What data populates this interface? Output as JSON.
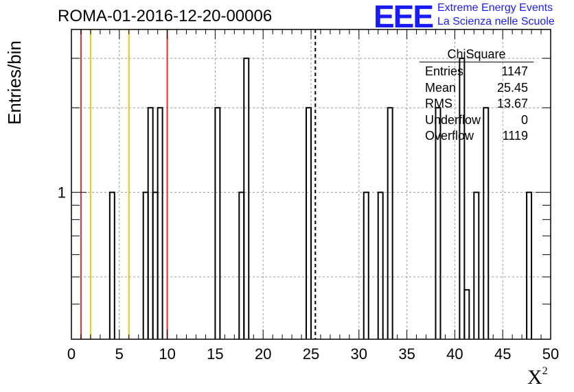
{
  "chart_data": {
    "type": "bar",
    "title": "ROMA-01-2016-12-20-00006",
    "xlabel": "X",
    "xlabel_superscript": "2",
    "ylabel": "Entries/bin",
    "xlim": [
      0,
      50
    ],
    "ylim_log": [
      0.3,
      3.8
    ],
    "y_scale": "log",
    "grid": true,
    "bin_width": 0.5,
    "x_ticks": [
      "0",
      "5",
      "10",
      "15",
      "20",
      "25",
      "30",
      "35",
      "40",
      "45",
      "50"
    ],
    "y_tick_labels": [
      "1"
    ],
    "bins": [
      {
        "x": 4.0,
        "count": 1
      },
      {
        "x": 7.5,
        "count": 1
      },
      {
        "x": 8.0,
        "count": 2
      },
      {
        "x": 8.5,
        "count": 1
      },
      {
        "x": 9.0,
        "count": 2
      },
      {
        "x": 15.0,
        "count": 2
      },
      {
        "x": 17.5,
        "count": 1
      },
      {
        "x": 18.0,
        "count": 3
      },
      {
        "x": 24.5,
        "count": 2
      },
      {
        "x": 30.5,
        "count": 1
      },
      {
        "x": 32.0,
        "count": 1
      },
      {
        "x": 33.0,
        "count": 2
      },
      {
        "x": 38.0,
        "count": 2
      },
      {
        "x": 40.5,
        "count": 3
      },
      {
        "x": 41.0,
        "count": 0.45
      },
      {
        "x": 42.0,
        "count": 1
      },
      {
        "x": 43.0,
        "count": 2
      },
      {
        "x": 47.5,
        "count": 1
      }
    ],
    "vertical_lines": [
      {
        "x": 1,
        "color": "#e8322a",
        "style": "solid"
      },
      {
        "x": 2,
        "color": "#f7c21b",
        "style": "solid"
      },
      {
        "x": 6,
        "color": "#f7c21b",
        "style": "solid"
      },
      {
        "x": 10,
        "color": "#e8322a",
        "style": "solid"
      },
      {
        "x": 25.45,
        "color": "#000000",
        "style": "dashed"
      }
    ],
    "stats_box": {
      "title": "ChiSquare",
      "rows": [
        {
          "label": "Entries",
          "value": "1147"
        },
        {
          "label": "Mean",
          "value": "25.45"
        },
        {
          "label": "RMS",
          "value": "13.67"
        },
        {
          "label": "Underflow",
          "value": "0"
        },
        {
          "label": "Overflow",
          "value": "1119"
        }
      ]
    }
  },
  "logo": {
    "mark": "EEE",
    "line1": "Extreme Energy Events",
    "line2": "La Scienza nelle Scuole",
    "color": "#1a1aff"
  }
}
